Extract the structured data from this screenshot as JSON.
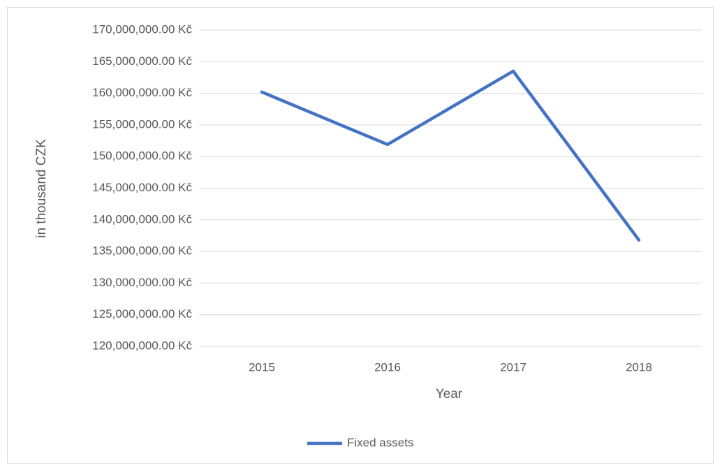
{
  "chart_data": {
    "type": "line",
    "categories": [
      "2015",
      "2016",
      "2017",
      "2018"
    ],
    "series": [
      {
        "name": "Fixed assets",
        "color": "#4472c4",
        "values": [
          160200000,
          151900000,
          163500000,
          136800000
        ]
      }
    ],
    "ylim": [
      120000000,
      170000000
    ],
    "yticks": [
      {
        "value": 120000000,
        "label": "120,000,000.00 Kč"
      },
      {
        "value": 125000000,
        "label": "125,000,000.00 Kč"
      },
      {
        "value": 130000000,
        "label": "130,000,000.00 Kč"
      },
      {
        "value": 135000000,
        "label": "135,000,000.00 Kč"
      },
      {
        "value": 140000000,
        "label": "140,000,000.00 Kč"
      },
      {
        "value": 145000000,
        "label": "145,000,000.00 Kč"
      },
      {
        "value": 150000000,
        "label": "150,000,000.00 Kč"
      },
      {
        "value": 155000000,
        "label": "155,000,000.00 Kč"
      },
      {
        "value": 160000000,
        "label": "160,000,000.00 Kč"
      },
      {
        "value": 165000000,
        "label": "165,000,000.00 Kč"
      },
      {
        "value": 170000000,
        "label": "170,000,000.00 Kč"
      }
    ],
    "y_label": "in thousand CZK",
    "x_label": "Year",
    "grid": true,
    "legend": "bottom"
  }
}
